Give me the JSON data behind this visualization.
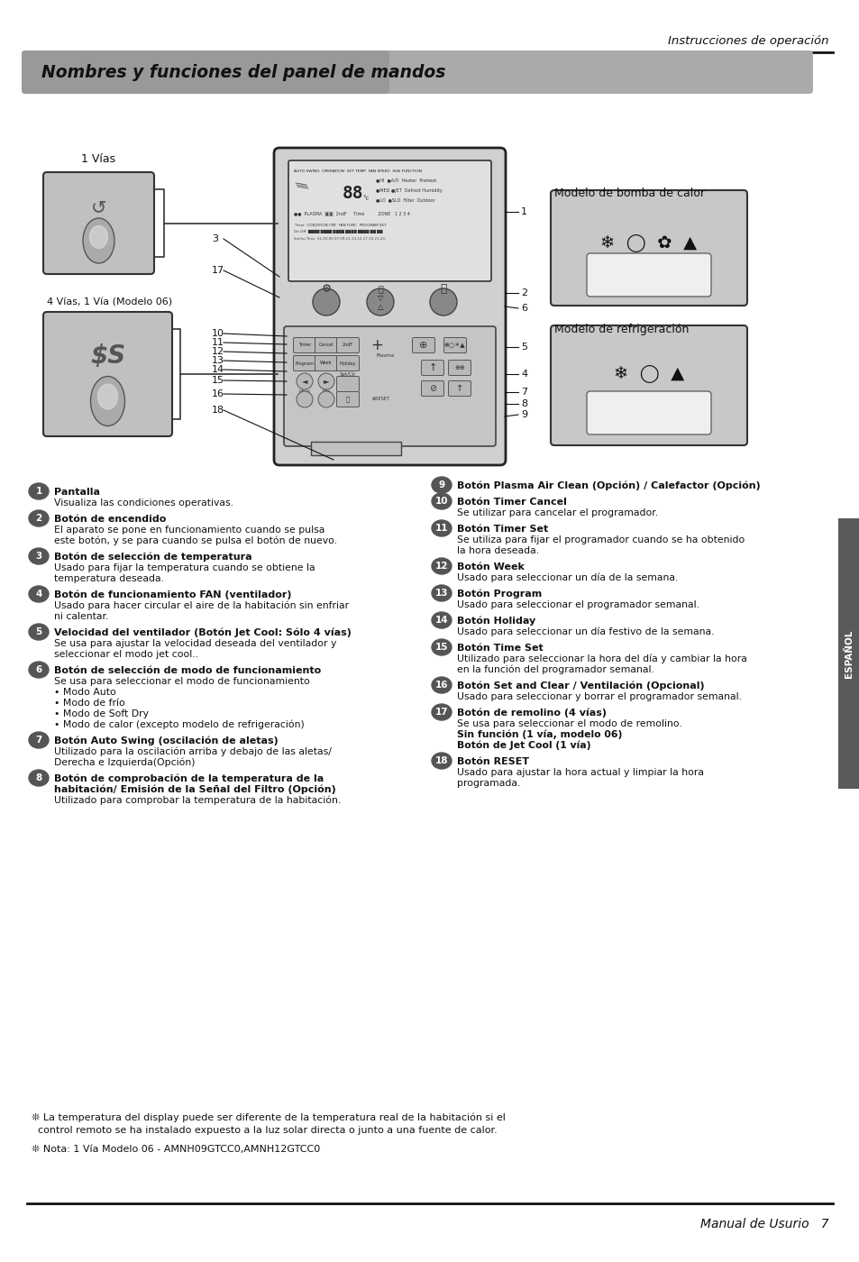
{
  "bg_color": "#ffffff",
  "page_width": 9.54,
  "page_height": 14.0,
  "header_text": "Instrucciones de operación",
  "footer_text": "Manual de Usurio",
  "footer_page": "7",
  "title": "Nombres y funciones del panel de mandos",
  "sidebar_text": "ESPAÑOL",
  "items_left": [
    {
      "num": "1",
      "bold": "Pantalla",
      "text": [
        "Visualiza las condiciones operativas."
      ]
    },
    {
      "num": "2",
      "bold": "Botón de encendido",
      "text": [
        "El aparato se pone en funcionamiento cuando se pulsa",
        "este botón, y se para cuando se pulsa el botón de nuevo."
      ]
    },
    {
      "num": "3",
      "bold": "Botón de selección de temperatura",
      "text": [
        "Usado para fijar la temperatura cuando se obtiene la",
        "temperatura deseada."
      ]
    },
    {
      "num": "4",
      "bold": "Botón de funcionamiento FAN (ventilador)",
      "text": [
        "Usado para hacer circular el aire de la habitación sin enfriar",
        "ni calentar."
      ]
    },
    {
      "num": "5",
      "bold": "Velocidad del ventilador (Botón Jet Cool: Sólo 4 vías)",
      "text": [
        "Se usa para ajustar la velocidad deseada del ventilador y",
        "seleccionar el modo jet cool.."
      ]
    },
    {
      "num": "6",
      "bold": "Botón de selección de modo de funcionamiento",
      "text": [
        "Se usa para seleccionar el modo de funcionamiento",
        "• Modo Auto",
        "• Modo de frío",
        "• Modo de Soft Dry",
        "• Modo de calor (excepto modelo de refrigeración)"
      ]
    },
    {
      "num": "7",
      "bold": "Botón Auto Swing (oscilación de aletas)",
      "text": [
        "Utilizado para la oscilación arriba y debajo de las aletas/",
        "Derecha e Izquierda(Opción)"
      ]
    },
    {
      "num": "8",
      "bold": "Botón de comprobación de la temperatura de la",
      "bold2": "habitación/ Emisión de la Señal del Filtro (Opción)",
      "text": [
        "Utilizado para comprobar la temperatura de la habitación."
      ]
    }
  ],
  "items_right": [
    {
      "num": "9",
      "bold": "Botón Plasma Air Clean (Opción) / Calefactor (Opción)",
      "text": []
    },
    {
      "num": "10",
      "bold": "Botón Timer Cancel",
      "text": [
        "Se utilizar para cancelar el programador."
      ]
    },
    {
      "num": "11",
      "bold": "Botón Timer Set",
      "text": [
        "Se utiliza para fijar el programador cuando se ha obtenido",
        "la hora deseada."
      ]
    },
    {
      "num": "12",
      "bold": "Botón Week",
      "text": [
        "Usado para seleccionar un día de la semana."
      ]
    },
    {
      "num": "13",
      "bold": "Botón Program",
      "text": [
        "Usado para seleccionar el programador semanal."
      ]
    },
    {
      "num": "14",
      "bold": "Botón Holiday",
      "text": [
        "Usado para seleccionar un día festivo de la semana."
      ]
    },
    {
      "num": "15",
      "bold": "Botón Time Set",
      "text": [
        "Utilizado para seleccionar la hora del día y cambiar la hora",
        "en la función del programador semanal."
      ]
    },
    {
      "num": "16",
      "bold": "Botón Set and Clear / Ventilación (Opcional)",
      "text": [
        "Usado para seleccionar y borrar el programador semanal."
      ]
    },
    {
      "num": "17",
      "bold": "Botón de remolino (4 vías)",
      "text": [
        "Se usa para seleccionar el modo de remolino.",
        "Sin función (1 vía, modelo 06)",
        "Botón de Jet Cool (1 vía)"
      ]
    },
    {
      "num": "18",
      "bold": "Botón RESET",
      "text": [
        "Usado para ajustar la hora actual y limpiar la hora",
        "programada."
      ]
    }
  ],
  "note1": "❊ La temperatura del display puede ser diferente de la temperatura real de la habitación si el",
  "note1b": "  control remoto se ha instalado expuesto a la luz solar directa o junto a una fuente de calor.",
  "note2": "❊ Nota: 1 Vía Modelo 06 - AMNH09GTCC0,AMNH12GTCC0"
}
